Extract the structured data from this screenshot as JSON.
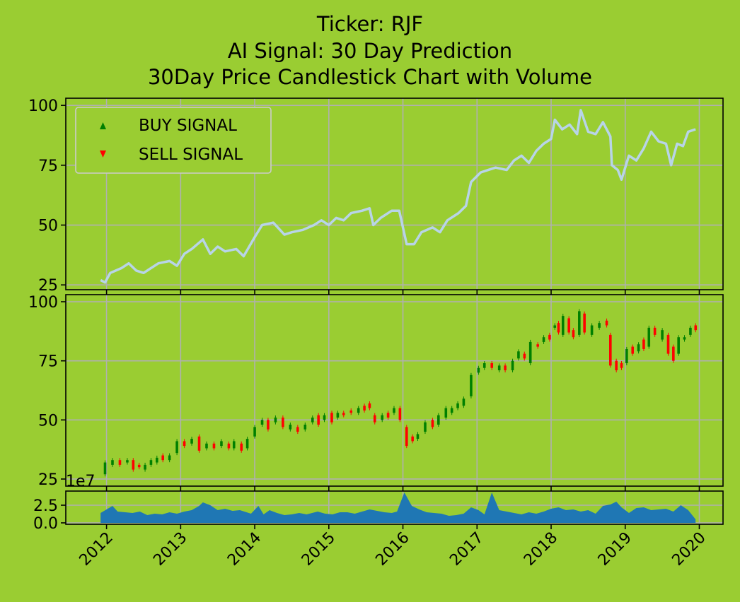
{
  "titles": {
    "line1": "Ticker: RJF",
    "line2": "AI Signal: 30 Day Prediction",
    "line3": "30Day Price Candlestick Chart with Volume"
  },
  "colors": {
    "background": "#9acd32",
    "price_line": "#b8d4e8",
    "up_candle": "#008000",
    "down_candle": "#ff0000",
    "volume_fill": "#1f77b4",
    "buy_marker": "#008000",
    "sell_marker": "#ff0000"
  },
  "chart_data": [
    {
      "type": "line",
      "name": "price_panel",
      "x_range": [
        2011.45,
        2020.32
      ],
      "ylim": [
        23,
        103
      ],
      "y_ticks": [
        25,
        50,
        75,
        100
      ],
      "legend": {
        "placement": "top-left",
        "entries": [
          "BUY SIGNAL",
          "SELL SIGNAL"
        ]
      },
      "grid": true,
      "points": [
        [
          2011.92,
          27
        ],
        [
          2011.98,
          26
        ],
        [
          2012.05,
          30
        ],
        [
          2012.2,
          32
        ],
        [
          2012.3,
          34
        ],
        [
          2012.4,
          31
        ],
        [
          2012.5,
          30
        ],
        [
          2012.6,
          32
        ],
        [
          2012.7,
          34
        ],
        [
          2012.85,
          35
        ],
        [
          2012.95,
          33
        ],
        [
          2013.05,
          38
        ],
        [
          2013.15,
          40
        ],
        [
          2013.3,
          44
        ],
        [
          2013.4,
          38
        ],
        [
          2013.5,
          41
        ],
        [
          2013.6,
          39
        ],
        [
          2013.75,
          40
        ],
        [
          2013.85,
          37
        ],
        [
          2014.0,
          45
        ],
        [
          2014.1,
          50
        ],
        [
          2014.25,
          51
        ],
        [
          2014.4,
          46
        ],
        [
          2014.5,
          47
        ],
        [
          2014.65,
          48
        ],
        [
          2014.8,
          50
        ],
        [
          2014.9,
          52
        ],
        [
          2015.0,
          50
        ],
        [
          2015.1,
          53
        ],
        [
          2015.2,
          52
        ],
        [
          2015.3,
          55
        ],
        [
          2015.45,
          56
        ],
        [
          2015.55,
          57
        ],
        [
          2015.6,
          50
        ],
        [
          2015.7,
          53
        ],
        [
          2015.85,
          56
        ],
        [
          2015.95,
          56
        ],
        [
          2016.05,
          42
        ],
        [
          2016.15,
          42
        ],
        [
          2016.25,
          47
        ],
        [
          2016.4,
          49
        ],
        [
          2016.5,
          47
        ],
        [
          2016.6,
          52
        ],
        [
          2016.75,
          55
        ],
        [
          2016.85,
          58
        ],
        [
          2016.92,
          68
        ],
        [
          2017.05,
          72
        ],
        [
          2017.15,
          73
        ],
        [
          2017.25,
          74
        ],
        [
          2017.4,
          73
        ],
        [
          2017.5,
          77
        ],
        [
          2017.6,
          79
        ],
        [
          2017.7,
          76
        ],
        [
          2017.8,
          81
        ],
        [
          2017.9,
          84
        ],
        [
          2018.0,
          86
        ],
        [
          2018.05,
          94
        ],
        [
          2018.15,
          90
        ],
        [
          2018.25,
          92
        ],
        [
          2018.35,
          88
        ],
        [
          2018.4,
          98
        ],
        [
          2018.5,
          89
        ],
        [
          2018.6,
          88
        ],
        [
          2018.7,
          93
        ],
        [
          2018.8,
          87
        ],
        [
          2018.82,
          75
        ],
        [
          2018.9,
          73
        ],
        [
          2018.95,
          69
        ],
        [
          2019.05,
          79
        ],
        [
          2019.15,
          77
        ],
        [
          2019.25,
          82
        ],
        [
          2019.35,
          89
        ],
        [
          2019.45,
          85
        ],
        [
          2019.55,
          84
        ],
        [
          2019.62,
          75
        ],
        [
          2019.7,
          84
        ],
        [
          2019.78,
          83
        ],
        [
          2019.85,
          89
        ],
        [
          2019.95,
          90
        ]
      ]
    },
    {
      "type": "candlestick",
      "name": "candle_panel",
      "x_range": [
        2011.45,
        2020.32
      ],
      "ylim": [
        22,
        103
      ],
      "y_ticks": [
        25,
        50,
        75,
        100
      ],
      "grid": true,
      "candles": [
        [
          2011.98,
          27,
          32
        ],
        [
          2012.08,
          31,
          33
        ],
        [
          2012.18,
          33,
          31
        ],
        [
          2012.28,
          32,
          33
        ],
        [
          2012.36,
          33,
          29
        ],
        [
          2012.44,
          31,
          30
        ],
        [
          2012.52,
          29,
          31
        ],
        [
          2012.6,
          31,
          33
        ],
        [
          2012.68,
          32,
          34
        ],
        [
          2012.76,
          35,
          33
        ],
        [
          2012.85,
          33,
          35
        ],
        [
          2012.95,
          36,
          41
        ],
        [
          2013.05,
          41,
          39
        ],
        [
          2013.15,
          40,
          42
        ],
        [
          2013.25,
          43,
          37
        ],
        [
          2013.35,
          38,
          40
        ],
        [
          2013.45,
          40,
          38
        ],
        [
          2013.55,
          39,
          41
        ],
        [
          2013.65,
          40,
          38
        ],
        [
          2013.72,
          38,
          41
        ],
        [
          2013.82,
          40,
          37
        ],
        [
          2013.9,
          38,
          42
        ],
        [
          2014.0,
          43,
          47
        ],
        [
          2014.1,
          48,
          50
        ],
        [
          2014.18,
          50,
          46
        ],
        [
          2014.28,
          49,
          51
        ],
        [
          2014.38,
          51,
          47
        ],
        [
          2014.48,
          46,
          48
        ],
        [
          2014.58,
          47,
          45
        ],
        [
          2014.68,
          46,
          48
        ],
        [
          2014.78,
          49,
          51
        ],
        [
          2014.86,
          52,
          48
        ],
        [
          2014.94,
          50,
          52
        ],
        [
          2015.04,
          53,
          49
        ],
        [
          2015.12,
          51,
          53
        ],
        [
          2015.2,
          53,
          52
        ],
        [
          2015.3,
          54,
          53
        ],
        [
          2015.4,
          53,
          55
        ],
        [
          2015.48,
          56,
          54
        ],
        [
          2015.55,
          57,
          55
        ],
        [
          2015.62,
          52,
          49
        ],
        [
          2015.72,
          50,
          52
        ],
        [
          2015.8,
          53,
          51
        ],
        [
          2015.88,
          53,
          55
        ],
        [
          2015.96,
          55,
          50
        ],
        [
          2016.05,
          47,
          39
        ],
        [
          2016.13,
          43,
          41
        ],
        [
          2016.2,
          42,
          44
        ],
        [
          2016.3,
          45,
          49
        ],
        [
          2016.4,
          50,
          47
        ],
        [
          2016.48,
          48,
          52
        ],
        [
          2016.58,
          51,
          55
        ],
        [
          2016.66,
          53,
          55
        ],
        [
          2016.74,
          55,
          57
        ],
        [
          2016.82,
          56,
          59
        ],
        [
          2016.92,
          60,
          69
        ],
        [
          2017.02,
          70,
          72
        ],
        [
          2017.1,
          72,
          74
        ],
        [
          2017.2,
          74,
          72
        ],
        [
          2017.3,
          71,
          73
        ],
        [
          2017.38,
          73,
          71
        ],
        [
          2017.48,
          71,
          75
        ],
        [
          2017.56,
          76,
          79
        ],
        [
          2017.64,
          78,
          76
        ],
        [
          2017.72,
          74,
          83
        ],
        [
          2017.82,
          82,
          81
        ],
        [
          2017.9,
          83,
          85
        ],
        [
          2017.98,
          86,
          84
        ],
        [
          2018.05,
          89,
          90
        ],
        [
          2018.1,
          91,
          87
        ],
        [
          2018.16,
          86,
          94
        ],
        [
          2018.24,
          93,
          87
        ],
        [
          2018.3,
          88,
          85
        ],
        [
          2018.38,
          86,
          96
        ],
        [
          2018.45,
          95,
          87
        ],
        [
          2018.55,
          86,
          90
        ],
        [
          2018.65,
          89,
          91
        ],
        [
          2018.75,
          92,
          90
        ],
        [
          2018.8,
          86,
          73
        ],
        [
          2018.88,
          75,
          71
        ],
        [
          2018.95,
          74,
          72
        ],
        [
          2019.02,
          74,
          80
        ],
        [
          2019.1,
          81,
          78
        ],
        [
          2019.18,
          79,
          82
        ],
        [
          2019.25,
          84,
          80
        ],
        [
          2019.32,
          81,
          89
        ],
        [
          2019.4,
          89,
          86
        ],
        [
          2019.5,
          84,
          88
        ],
        [
          2019.58,
          86,
          78
        ],
        [
          2019.65,
          81,
          75
        ],
        [
          2019.72,
          78,
          85
        ],
        [
          2019.8,
          84,
          85
        ],
        [
          2019.88,
          86,
          89
        ],
        [
          2019.95,
          90,
          88
        ]
      ]
    },
    {
      "type": "area",
      "name": "volume_panel",
      "x_range": [
        2011.45,
        2020.32
      ],
      "ylim": [
        -0.2,
        4.5
      ],
      "y_ticks": [
        0.0,
        2.5
      ],
      "y_tick_labels": [
        "0.0",
        "2.5"
      ],
      "offset_label": "1e7",
      "grid": true,
      "x_ticks": [
        "2012",
        "2013",
        "2014",
        "2015",
        "2016",
        "2017",
        "2018",
        "2019",
        "2020"
      ],
      "points": [
        [
          2011.92,
          1.4
        ],
        [
          2012.0,
          1.9
        ],
        [
          2012.08,
          2.4
        ],
        [
          2012.15,
          1.6
        ],
        [
          2012.25,
          1.5
        ],
        [
          2012.35,
          1.4
        ],
        [
          2012.45,
          1.6
        ],
        [
          2012.55,
          1.1
        ],
        [
          2012.65,
          1.3
        ],
        [
          2012.75,
          1.2
        ],
        [
          2012.85,
          1.5
        ],
        [
          2012.95,
          1.3
        ],
        [
          2013.05,
          1.6
        ],
        [
          2013.15,
          1.8
        ],
        [
          2013.25,
          2.4
        ],
        [
          2013.3,
          2.9
        ],
        [
          2013.4,
          2.5
        ],
        [
          2013.5,
          1.8
        ],
        [
          2013.6,
          2.0
        ],
        [
          2013.7,
          1.7
        ],
        [
          2013.8,
          1.8
        ],
        [
          2013.95,
          1.3
        ],
        [
          2014.05,
          2.4
        ],
        [
          2014.12,
          1.2
        ],
        [
          2014.2,
          1.8
        ],
        [
          2014.3,
          1.4
        ],
        [
          2014.4,
          1.1
        ],
        [
          2014.5,
          1.2
        ],
        [
          2014.6,
          1.4
        ],
        [
          2014.7,
          1.2
        ],
        [
          2014.85,
          1.6
        ],
        [
          2014.95,
          1.3
        ],
        [
          2015.05,
          1.2
        ],
        [
          2015.15,
          1.5
        ],
        [
          2015.25,
          1.5
        ],
        [
          2015.35,
          1.3
        ],
        [
          2015.45,
          1.6
        ],
        [
          2015.55,
          1.9
        ],
        [
          2015.65,
          1.7
        ],
        [
          2015.75,
          1.5
        ],
        [
          2015.85,
          1.4
        ],
        [
          2015.92,
          1.6
        ],
        [
          2016.02,
          4.3
        ],
        [
          2016.12,
          2.4
        ],
        [
          2016.22,
          1.9
        ],
        [
          2016.32,
          1.5
        ],
        [
          2016.42,
          1.4
        ],
        [
          2016.52,
          1.3
        ],
        [
          2016.62,
          1.0
        ],
        [
          2016.72,
          1.1
        ],
        [
          2016.82,
          1.3
        ],
        [
          2016.92,
          2.2
        ],
        [
          2017.02,
          1.8
        ],
        [
          2017.1,
          1.2
        ],
        [
          2017.2,
          4.3
        ],
        [
          2017.3,
          1.8
        ],
        [
          2017.4,
          1.6
        ],
        [
          2017.5,
          1.4
        ],
        [
          2017.6,
          1.2
        ],
        [
          2017.7,
          1.5
        ],
        [
          2017.8,
          1.3
        ],
        [
          2017.9,
          1.6
        ],
        [
          2018.0,
          2.0
        ],
        [
          2018.1,
          2.2
        ],
        [
          2018.2,
          1.8
        ],
        [
          2018.3,
          1.9
        ],
        [
          2018.4,
          1.6
        ],
        [
          2018.5,
          1.8
        ],
        [
          2018.6,
          1.3
        ],
        [
          2018.7,
          2.4
        ],
        [
          2018.8,
          2.6
        ],
        [
          2018.88,
          3.0
        ],
        [
          2018.95,
          2.2
        ],
        [
          2019.05,
          1.4
        ],
        [
          2019.15,
          2.1
        ],
        [
          2019.25,
          2.2
        ],
        [
          2019.35,
          1.8
        ],
        [
          2019.45,
          1.9
        ],
        [
          2019.55,
          2.0
        ],
        [
          2019.65,
          1.6
        ],
        [
          2019.75,
          2.5
        ],
        [
          2019.85,
          1.8
        ],
        [
          2019.95,
          0.5
        ]
      ]
    }
  ]
}
